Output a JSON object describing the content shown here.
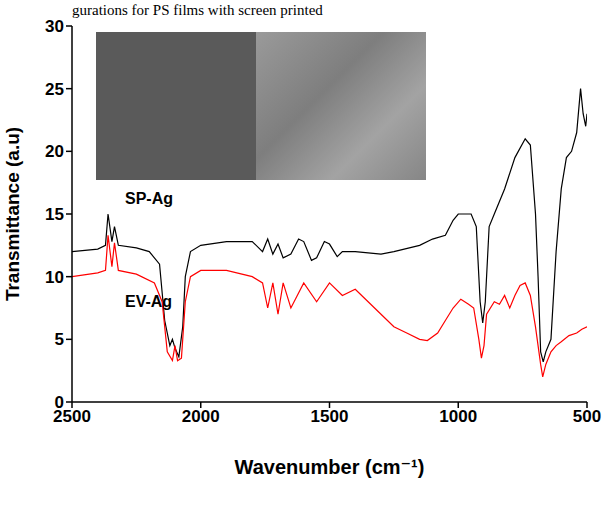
{
  "chart_data": {
    "type": "line",
    "title": "gurations for PS films with screen printed",
    "x_label": "Wavenumber (cm⁻¹)",
    "y_label": "Transmittance (a.u)",
    "xlim": [
      2500,
      500
    ],
    "xticks": [
      2500,
      2000,
      1500,
      1000,
      500
    ],
    "ylim": [
      0,
      30
    ],
    "yticks": [
      0,
      5,
      10,
      15,
      20,
      25,
      30
    ],
    "grid": false,
    "series": [
      {
        "name": "SP-Ag",
        "color": "#000000",
        "x": [
          2500,
          2400,
          2370,
          2360,
          2345,
          2335,
          2320,
          2250,
          2200,
          2160,
          2140,
          2120,
          2110,
          2100,
          2085,
          2070,
          2060,
          2040,
          2000,
          1900,
          1800,
          1760,
          1740,
          1720,
          1700,
          1680,
          1650,
          1620,
          1600,
          1570,
          1550,
          1520,
          1500,
          1470,
          1450,
          1400,
          1300,
          1250,
          1150,
          1100,
          1050,
          1020,
          1000,
          950,
          930,
          915,
          905,
          895,
          880,
          860,
          820,
          780,
          740,
          720,
          700,
          690,
          680,
          670,
          660,
          640,
          620,
          600,
          580,
          560,
          540,
          525,
          515,
          505,
          500
        ],
        "values": [
          12.0,
          12.2,
          12.5,
          15.0,
          12.8,
          14.0,
          12.5,
          12.3,
          12.0,
          11.0,
          6.5,
          4.5,
          5.0,
          4.3,
          3.6,
          6.0,
          10.0,
          12.0,
          12.5,
          12.8,
          12.8,
          12.0,
          13.0,
          11.8,
          12.6,
          11.5,
          11.8,
          13.0,
          12.8,
          11.3,
          11.5,
          12.8,
          12.6,
          11.6,
          12.0,
          12.0,
          11.8,
          12.0,
          12.5,
          13.0,
          13.3,
          14.5,
          15.0,
          15.0,
          14.0,
          8.0,
          6.3,
          8.0,
          14.0,
          15.0,
          17.0,
          19.5,
          21.0,
          20.5,
          15.0,
          10.0,
          4.0,
          3.2,
          4.0,
          5.0,
          12.0,
          17.0,
          19.5,
          20.0,
          21.5,
          25.0,
          23.0,
          22.0,
          23.0
        ]
      },
      {
        "name": "EV-Ag",
        "color": "#ff0000",
        "x": [
          2500,
          2400,
          2370,
          2360,
          2345,
          2335,
          2320,
          2250,
          2180,
          2150,
          2130,
          2110,
          2100,
          2090,
          2075,
          2060,
          2040,
          2000,
          1900,
          1800,
          1760,
          1740,
          1720,
          1700,
          1680,
          1650,
          1600,
          1550,
          1500,
          1450,
          1400,
          1350,
          1300,
          1250,
          1200,
          1150,
          1120,
          1080,
          1050,
          1020,
          990,
          960,
          940,
          920,
          910,
          900,
          890,
          860,
          840,
          820,
          800,
          780,
          760,
          740,
          720,
          700,
          680,
          672,
          660,
          640,
          620,
          600,
          570,
          540,
          520,
          500
        ],
        "values": [
          10.0,
          10.3,
          10.5,
          13.3,
          10.8,
          12.7,
          10.5,
          10.2,
          9.5,
          8.0,
          4.0,
          3.3,
          4.5,
          3.3,
          3.5,
          8.0,
          10.0,
          10.5,
          10.5,
          10.0,
          9.5,
          7.5,
          9.5,
          7.0,
          9.5,
          7.5,
          9.5,
          8.0,
          9.5,
          8.5,
          9.0,
          8.0,
          7.0,
          6.0,
          5.5,
          5.0,
          4.9,
          5.5,
          6.5,
          7.5,
          8.2,
          7.8,
          7.5,
          5.0,
          3.5,
          4.5,
          7.0,
          8.0,
          7.8,
          8.5,
          7.5,
          8.5,
          9.3,
          9.5,
          8.5,
          6.0,
          3.0,
          2.0,
          3.0,
          4.0,
          4.5,
          4.8,
          5.3,
          5.5,
          5.8,
          6.0
        ]
      }
    ]
  }
}
